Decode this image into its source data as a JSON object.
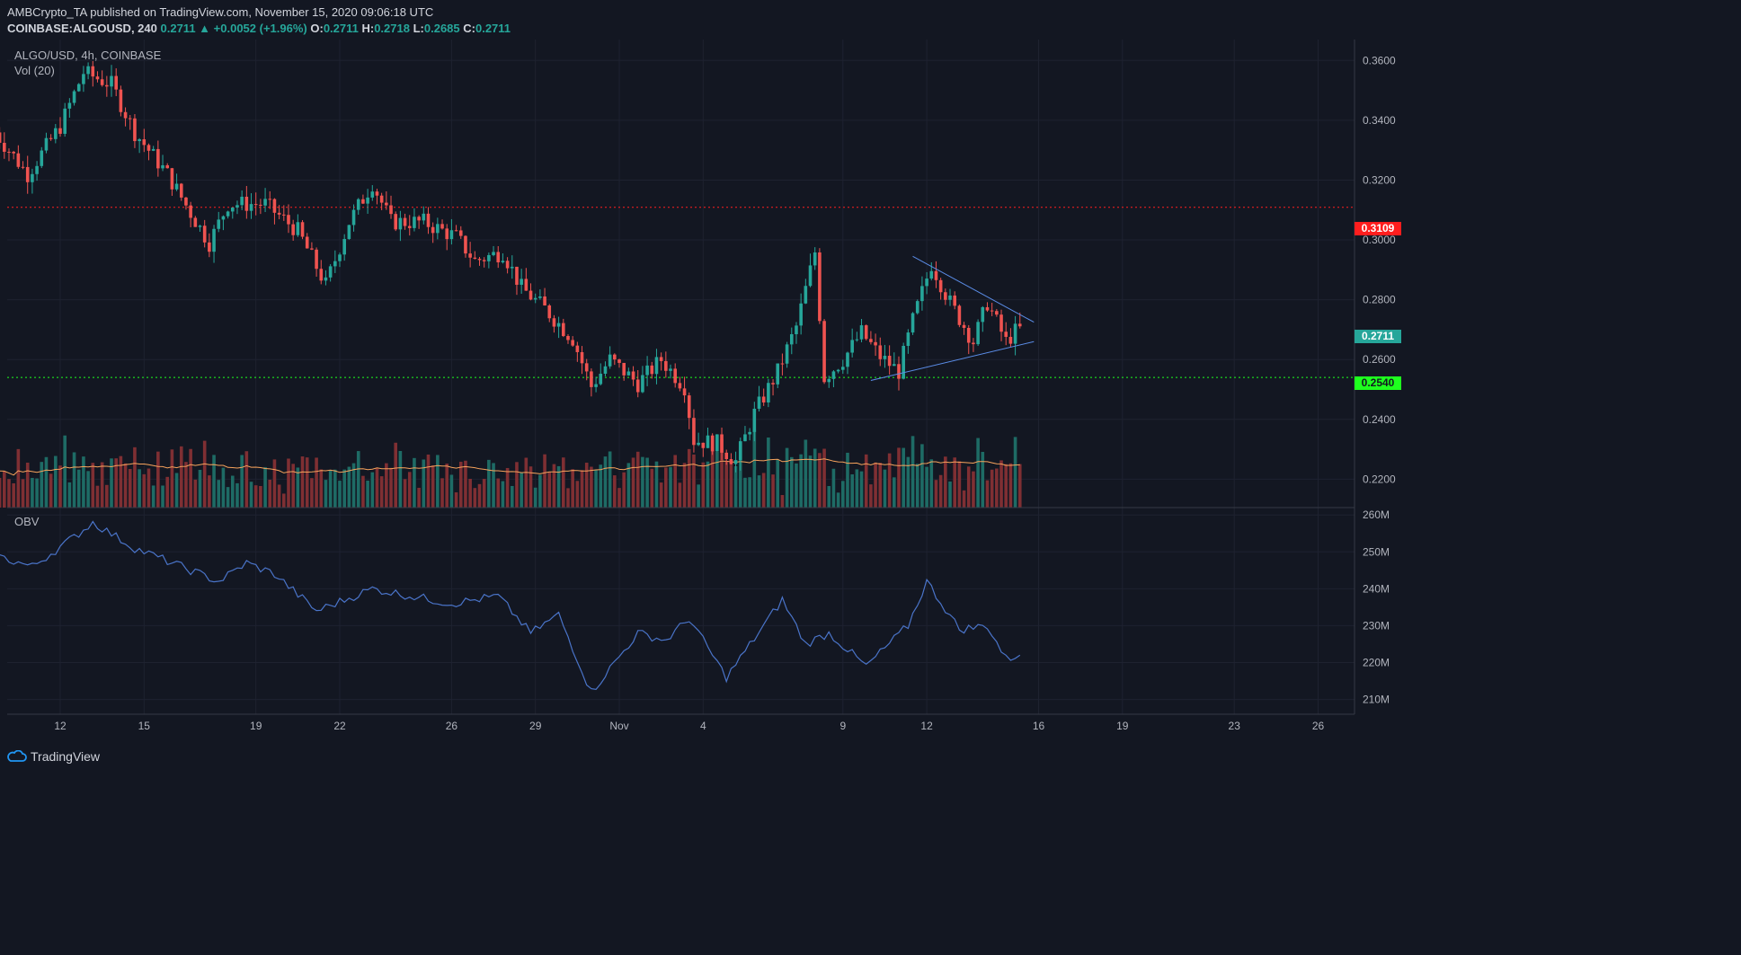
{
  "header": {
    "published_line": "AMBCrypto_TA published on TradingView.com, November 15, 2020 09:06:18 UTC",
    "symbol_interval": "COINBASE:ALGOUSD, 240",
    "last": "0.2711",
    "change": "▲ +0.0052 (+1.96%)",
    "o_label": "O:",
    "o_value": "0.2711",
    "h_label": "H:",
    "h_value": "0.2718",
    "l_label": "L:",
    "l_value": "0.2685",
    "c_label": "C:",
    "c_value": "0.2711"
  },
  "legend": {
    "pair": "ALGO/USD, 4h, COINBASE",
    "volume": "Vol (20)",
    "obv": "OBV"
  },
  "price_tags": {
    "resistance": "0.3109",
    "current": "0.2711",
    "support": "0.2540"
  },
  "footer": {
    "brand": "TradingView"
  },
  "colors": {
    "background": "#131722",
    "up": "#26a69a",
    "down": "#ef5350",
    "resistance_line": "#ff1e1e",
    "support_line": "#1eff1e",
    "triangle": "#5b8de8",
    "volume_ma": "#f7a35c",
    "obv_line": "#4a74c9"
  },
  "chart_data": [
    {
      "type": "candlestick",
      "title": "ALGO/USD, 4h, COINBASE",
      "y_ticks": [
        "0.3600",
        "0.3400",
        "0.3200",
        "0.3000",
        "0.2800",
        "0.2600",
        "0.2400",
        "0.2200"
      ],
      "ylim": [
        0.2105,
        0.367
      ],
      "x_ticks": [
        "12",
        "15",
        "19",
        "22",
        "26",
        "29",
        "Nov",
        "4",
        "9",
        "12",
        "16",
        "19",
        "23",
        "26"
      ],
      "anchors": [
        {
          "x": "Oct 9 16:00",
          "close": 0.336
        },
        {
          "x": "Oct 10 20:00",
          "close": 0.322
        },
        {
          "x": "Oct 12 00:00",
          "close": 0.338
        },
        {
          "x": "Oct 12 20:00",
          "close": 0.356
        },
        {
          "x": "Oct 13 20:00",
          "close": 0.352
        },
        {
          "x": "Oct 14 16:00",
          "close": 0.336
        },
        {
          "x": "Oct 15 20:00",
          "close": 0.322
        },
        {
          "x": "Oct 16 16:00",
          "close": 0.309
        },
        {
          "x": "Oct 17 08:00",
          "close": 0.299
        },
        {
          "x": "Oct 18 00:00",
          "close": 0.312
        },
        {
          "x": "Oct 19 08:00",
          "close": 0.312
        },
        {
          "x": "Oct 20 12:00",
          "close": 0.303
        },
        {
          "x": "Oct 21 12:00",
          "close": 0.285
        },
        {
          "x": "Oct 22 08:00",
          "close": 0.306
        },
        {
          "x": "Oct 23 04:00",
          "close": 0.319
        },
        {
          "x": "Oct 23 20:00",
          "close": 0.306
        },
        {
          "x": "Oct 25 00:00",
          "close": 0.306
        },
        {
          "x": "Oct 26 04:00",
          "close": 0.301
        },
        {
          "x": "Oct 26 20:00",
          "close": 0.293
        },
        {
          "x": "Oct 27 20:00",
          "close": 0.296
        },
        {
          "x": "Oct 28 12:00",
          "close": 0.284
        },
        {
          "x": "Oct 29 08:00",
          "close": 0.277
        },
        {
          "x": "Oct 30 08:00",
          "close": 0.267
        },
        {
          "x": "Oct 31 00:00",
          "close": 0.251
        },
        {
          "x": "Oct 31 16:00",
          "close": 0.26
        },
        {
          "x": "Nov 1 16:00",
          "close": 0.252
        },
        {
          "x": "Nov 2 12:00",
          "close": 0.26
        },
        {
          "x": "Nov 3 08:00",
          "close": 0.251
        },
        {
          "x": "Nov 3 16:00",
          "close": 0.233
        },
        {
          "x": "Nov 4 12:00",
          "close": 0.232
        },
        {
          "x": "Nov 5 04:00",
          "close": 0.226
        },
        {
          "x": "Nov 5 20:00",
          "close": 0.242
        },
        {
          "x": "Nov 6 16:00",
          "close": 0.256
        },
        {
          "x": "Nov 7 08:00",
          "close": 0.271
        },
        {
          "x": "Nov 8 00:00",
          "close": 0.296
        },
        {
          "x": "Nov 8 08:00",
          "close": 0.254
        },
        {
          "x": "Nov 9 00:00",
          "close": 0.26
        },
        {
          "x": "Nov 9 16:00",
          "close": 0.269
        },
        {
          "x": "Nov 10 08:00",
          "close": 0.261
        },
        {
          "x": "Nov 11 00:00",
          "close": 0.256
        },
        {
          "x": "Nov 11 12:00",
          "close": 0.273
        },
        {
          "x": "Nov 12 04:00",
          "close": 0.292
        },
        {
          "x": "Nov 12 20:00",
          "close": 0.279
        },
        {
          "x": "Nov 13 16:00",
          "close": 0.266
        },
        {
          "x": "Nov 14 04:00",
          "close": 0.279
        },
        {
          "x": "Nov 14 20:00",
          "close": 0.266
        },
        {
          "x": "Nov 15 08:00",
          "close": 0.2711
        }
      ],
      "horizontal_levels": [
        {
          "value": 0.3109,
          "style": "dotted",
          "color": "red",
          "label": "0.3109"
        },
        {
          "value": 0.254,
          "style": "dotted",
          "color": "green",
          "label": "0.2540"
        }
      ],
      "triangle": {
        "upper": [
          {
            "x": "Nov 11 12:00",
            "y": 0.2945
          },
          {
            "x": "Nov 15 20:00",
            "y": 0.2725
          }
        ],
        "lower": [
          {
            "x": "Nov 10 00:00",
            "y": 0.253
          },
          {
            "x": "Nov 15 20:00",
            "y": 0.266
          }
        ]
      },
      "current_price": 0.2711
    },
    {
      "type": "bar",
      "title": "Vol (20)",
      "note": "volume bars colored by candle direction, with 20-period moving average"
    },
    {
      "type": "line",
      "title": "OBV",
      "y_ticks": [
        "260M",
        "250M",
        "240M",
        "230M",
        "220M",
        "210M"
      ],
      "ylim": [
        206,
        262
      ],
      "anchors": [
        {
          "x": "Oct 9 16:00",
          "y": 249
        },
        {
          "x": "Oct 11 00:00",
          "y": 246
        },
        {
          "x": "Oct 12 12:00",
          "y": 254
        },
        {
          "x": "Oct 13 04:00",
          "y": 258
        },
        {
          "x": "Oct 14 16:00",
          "y": 251
        },
        {
          "x": "Oct 16 16:00",
          "y": 245
        },
        {
          "x": "Oct 17 16:00",
          "y": 242
        },
        {
          "x": "Oct 18 16:00",
          "y": 247
        },
        {
          "x": "Oct 19 16:00",
          "y": 244
        },
        {
          "x": "Oct 21 04:00",
          "y": 234
        },
        {
          "x": "Oct 22 12:00",
          "y": 238
        },
        {
          "x": "Oct 23 04:00",
          "y": 240
        },
        {
          "x": "Oct 26 00:00",
          "y": 236
        },
        {
          "x": "Oct 27 16:00",
          "y": 238
        },
        {
          "x": "Oct 28 20:00",
          "y": 228
        },
        {
          "x": "Oct 29 20:00",
          "y": 233
        },
        {
          "x": "Oct 31 00:00",
          "y": 212
        },
        {
          "x": "Nov 1 16:00",
          "y": 228
        },
        {
          "x": "Nov 2 16:00",
          "y": 226
        },
        {
          "x": "Nov 3 12:00",
          "y": 232
        },
        {
          "x": "Nov 4 20:00",
          "y": 216
        },
        {
          "x": "Nov 6 20:00",
          "y": 237
        },
        {
          "x": "Nov 7 16:00",
          "y": 225
        },
        {
          "x": "Nov 8 12:00",
          "y": 228
        },
        {
          "x": "Nov 9 20:00",
          "y": 219
        },
        {
          "x": "Nov 11 08:00",
          "y": 230
        },
        {
          "x": "Nov 12 00:00",
          "y": 242
        },
        {
          "x": "Nov 13 04:00",
          "y": 229
        },
        {
          "x": "Nov 14 04:00",
          "y": 230
        },
        {
          "x": "Nov 14 20:00",
          "y": 221
        },
        {
          "x": "Nov 15 08:00",
          "y": 222
        }
      ]
    }
  ]
}
